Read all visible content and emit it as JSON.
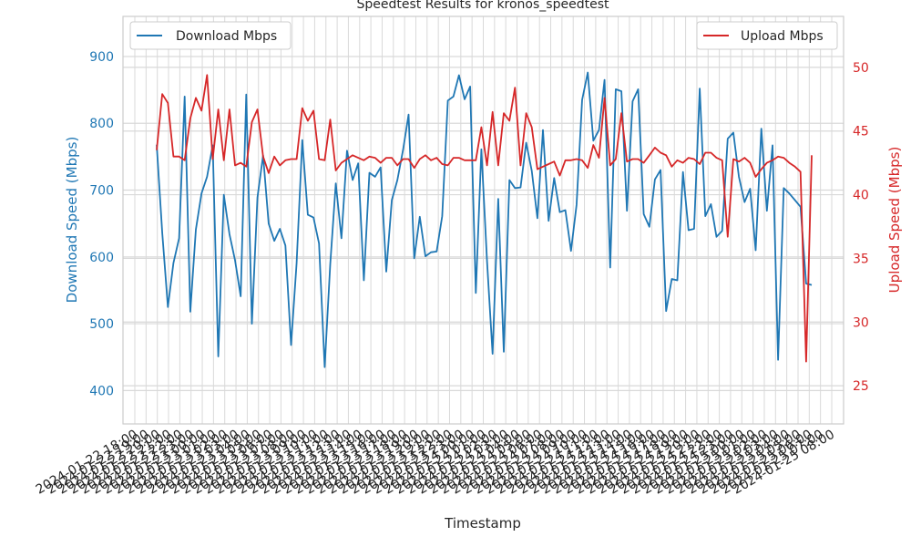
{
  "chart_data": {
    "type": "line",
    "title": "Speedtest Results for kronos_speedtest",
    "xlabel": "Timestamp",
    "ylabel_left": "Download Speed (Mbps)",
    "ylabel_right": "Upload Speed (Mbps)",
    "ylim_left": [
      350,
      960
    ],
    "ylim_right": [
      22,
      54
    ],
    "yticks_left": [
      400,
      500,
      600,
      700,
      800,
      900
    ],
    "yticks_right": [
      25,
      30,
      35,
      40,
      45,
      50
    ],
    "grid": true,
    "colors": {
      "download": "#1f77b4",
      "upload": "#d62728"
    },
    "x_first_label": "2024-01-22 18:00",
    "x_last_label": "2024-01-25 08:00",
    "x_tick_labels": [
      "2024-01-22 18:00",
      "2024-01-22 19:00",
      "2024-01-22 20:00",
      "2024-01-22 21:00",
      "2024-01-22 22:00",
      "2024-01-22 23:00",
      "2024-01-23 00:00",
      "2024-01-23 01:00",
      "2024-01-23 02:00",
      "2024-01-23 03:00",
      "2024-01-23 04:00",
      "2024-01-23 05:00",
      "2024-01-23 06:00",
      "2024-01-23 07:00",
      "2024-01-23 08:00",
      "2024-01-23 09:00",
      "2024-01-23 10:00",
      "2024-01-23 11:00",
      "2024-01-23 12:00",
      "2024-01-23 13:00",
      "2024-01-23 14:00",
      "2024-01-23 15:00",
      "2024-01-23 16:00",
      "2024-01-23 17:00",
      "2024-01-23 18:00",
      "2024-01-23 19:00",
      "2024-01-23 20:00",
      "2024-01-23 21:00",
      "2024-01-23 22:00",
      "2024-01-23 23:00",
      "2024-01-24 00:00",
      "2024-01-24 01:00",
      "2024-01-24 02:00",
      "2024-01-24 03:00",
      "2024-01-24 04:00",
      "2024-01-24 05:00",
      "2024-01-24 06:00",
      "2024-01-24 07:00",
      "2024-01-24 08:00",
      "2024-01-24 09:00",
      "2024-01-24 10:00",
      "2024-01-24 11:00",
      "2024-01-24 12:00",
      "2024-01-24 13:00",
      "2024-01-24 14:00",
      "2024-01-24 15:00",
      "2024-01-24 16:00",
      "2024-01-24 17:00",
      "2024-01-24 18:00",
      "2024-01-24 19:00",
      "2024-01-24 20:00",
      "2024-01-24 21:00",
      "2024-01-24 22:00",
      "2024-01-24 23:00",
      "2024-01-25 00:00",
      "2024-01-25 01:00",
      "2024-01-25 02:00",
      "2024-01-25 03:00",
      "2024-01-25 04:00",
      "2024-01-25 05:00",
      "2024-01-25 06:00",
      "2024-01-25 07:00",
      "2024-01-25 08:00"
    ],
    "legend": {
      "download": "Download Mbps",
      "upload": "Upload Mbps"
    },
    "series": [
      {
        "name": "Download Mbps",
        "axis": "left",
        "values": [
          768,
          636,
          525,
          591,
          628,
          840,
          518,
          641,
          695,
          720,
          767,
          451,
          693,
          634,
          595,
          541,
          843,
          500,
          689,
          752,
          650,
          624,
          642,
          617,
          468,
          591,
          775,
          663,
          659,
          620,
          435,
          589,
          710,
          628,
          759,
          715,
          740,
          565,
          726,
          720,
          734,
          578,
          685,
          715,
          760,
          813,
          598,
          660,
          601,
          607,
          608,
          661,
          834,
          840,
          872,
          836,
          855,
          546,
          761,
          594,
          455,
          687,
          458,
          715,
          703,
          704,
          771,
          729,
          658,
          790,
          654,
          718,
          667,
          670,
          609,
          678,
          835,
          876,
          774,
          790,
          865,
          584,
          851,
          848,
          669,
          833,
          851,
          664,
          645,
          716,
          730,
          519,
          567,
          565,
          727,
          640,
          642,
          852,
          661,
          679,
          630,
          639,
          777,
          786,
          720,
          682,
          702,
          610,
          792,
          669,
          767,
          446,
          703,
          695,
          685,
          675,
          560,
          558
        ]
      },
      {
        "name": "Upload Mbps",
        "axis": "right",
        "values": [
          43.5,
          47.9,
          47.2,
          43.0,
          43.0,
          42.7,
          46.0,
          47.6,
          46.6,
          49.4,
          42.8,
          46.7,
          42.7,
          46.7,
          42.3,
          42.5,
          42.2,
          45.7,
          46.7,
          43.0,
          41.7,
          43.0,
          42.3,
          42.7,
          42.8,
          42.8,
          46.8,
          45.8,
          46.6,
          42.8,
          42.7,
          45.9,
          41.9,
          42.5,
          42.8,
          43.1,
          42.9,
          42.7,
          43.0,
          42.9,
          42.5,
          42.9,
          42.9,
          42.3,
          42.8,
          42.8,
          42.1,
          42.8,
          43.1,
          42.7,
          42.9,
          42.4,
          42.3,
          42.9,
          42.9,
          42.7,
          42.7,
          42.7,
          45.3,
          42.3,
          46.5,
          42.3,
          46.4,
          45.8,
          48.4,
          42.3,
          46.4,
          45.3,
          42.0,
          42.2,
          42.4,
          42.6,
          41.5,
          42.7,
          42.7,
          42.8,
          42.7,
          42.1,
          43.9,
          42.9,
          47.6,
          42.3,
          42.8,
          46.4,
          42.6,
          42.8,
          42.8,
          42.5,
          43.1,
          43.7,
          43.3,
          43.1,
          42.2,
          42.7,
          42.5,
          42.9,
          42.8,
          42.4,
          43.3,
          43.3,
          42.9,
          42.7,
          36.7,
          42.8,
          42.6,
          42.9,
          42.5,
          41.4,
          42.0,
          42.5,
          42.7,
          43.0,
          42.9,
          42.5,
          42.2,
          41.8,
          26.9,
          43.1
        ]
      }
    ]
  }
}
